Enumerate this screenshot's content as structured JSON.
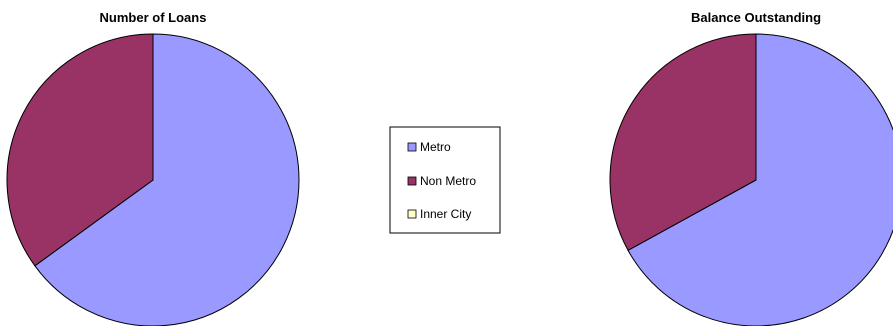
{
  "chart_data": [
    {
      "type": "pie",
      "title": "Number of Loans",
      "categories": [
        "Metro",
        "Non Metro",
        "Inner City"
      ],
      "values": [
        65,
        35,
        0
      ],
      "colors": [
        "#9999FF",
        "#993366",
        "#FFFFCC"
      ]
    },
    {
      "type": "pie",
      "title": "Balance Outstanding",
      "categories": [
        "Metro",
        "Non Metro",
        "Inner City"
      ],
      "values": [
        67,
        33,
        0
      ],
      "colors": [
        "#9999FF",
        "#993366",
        "#FFFFCC"
      ]
    }
  ],
  "legend": {
    "placement": "center",
    "items": [
      {
        "label": "Metro",
        "color": "#9999FF"
      },
      {
        "label": "Non Metro",
        "color": "#993366"
      },
      {
        "label": "Inner City",
        "color": "#FFFFCC"
      }
    ]
  }
}
